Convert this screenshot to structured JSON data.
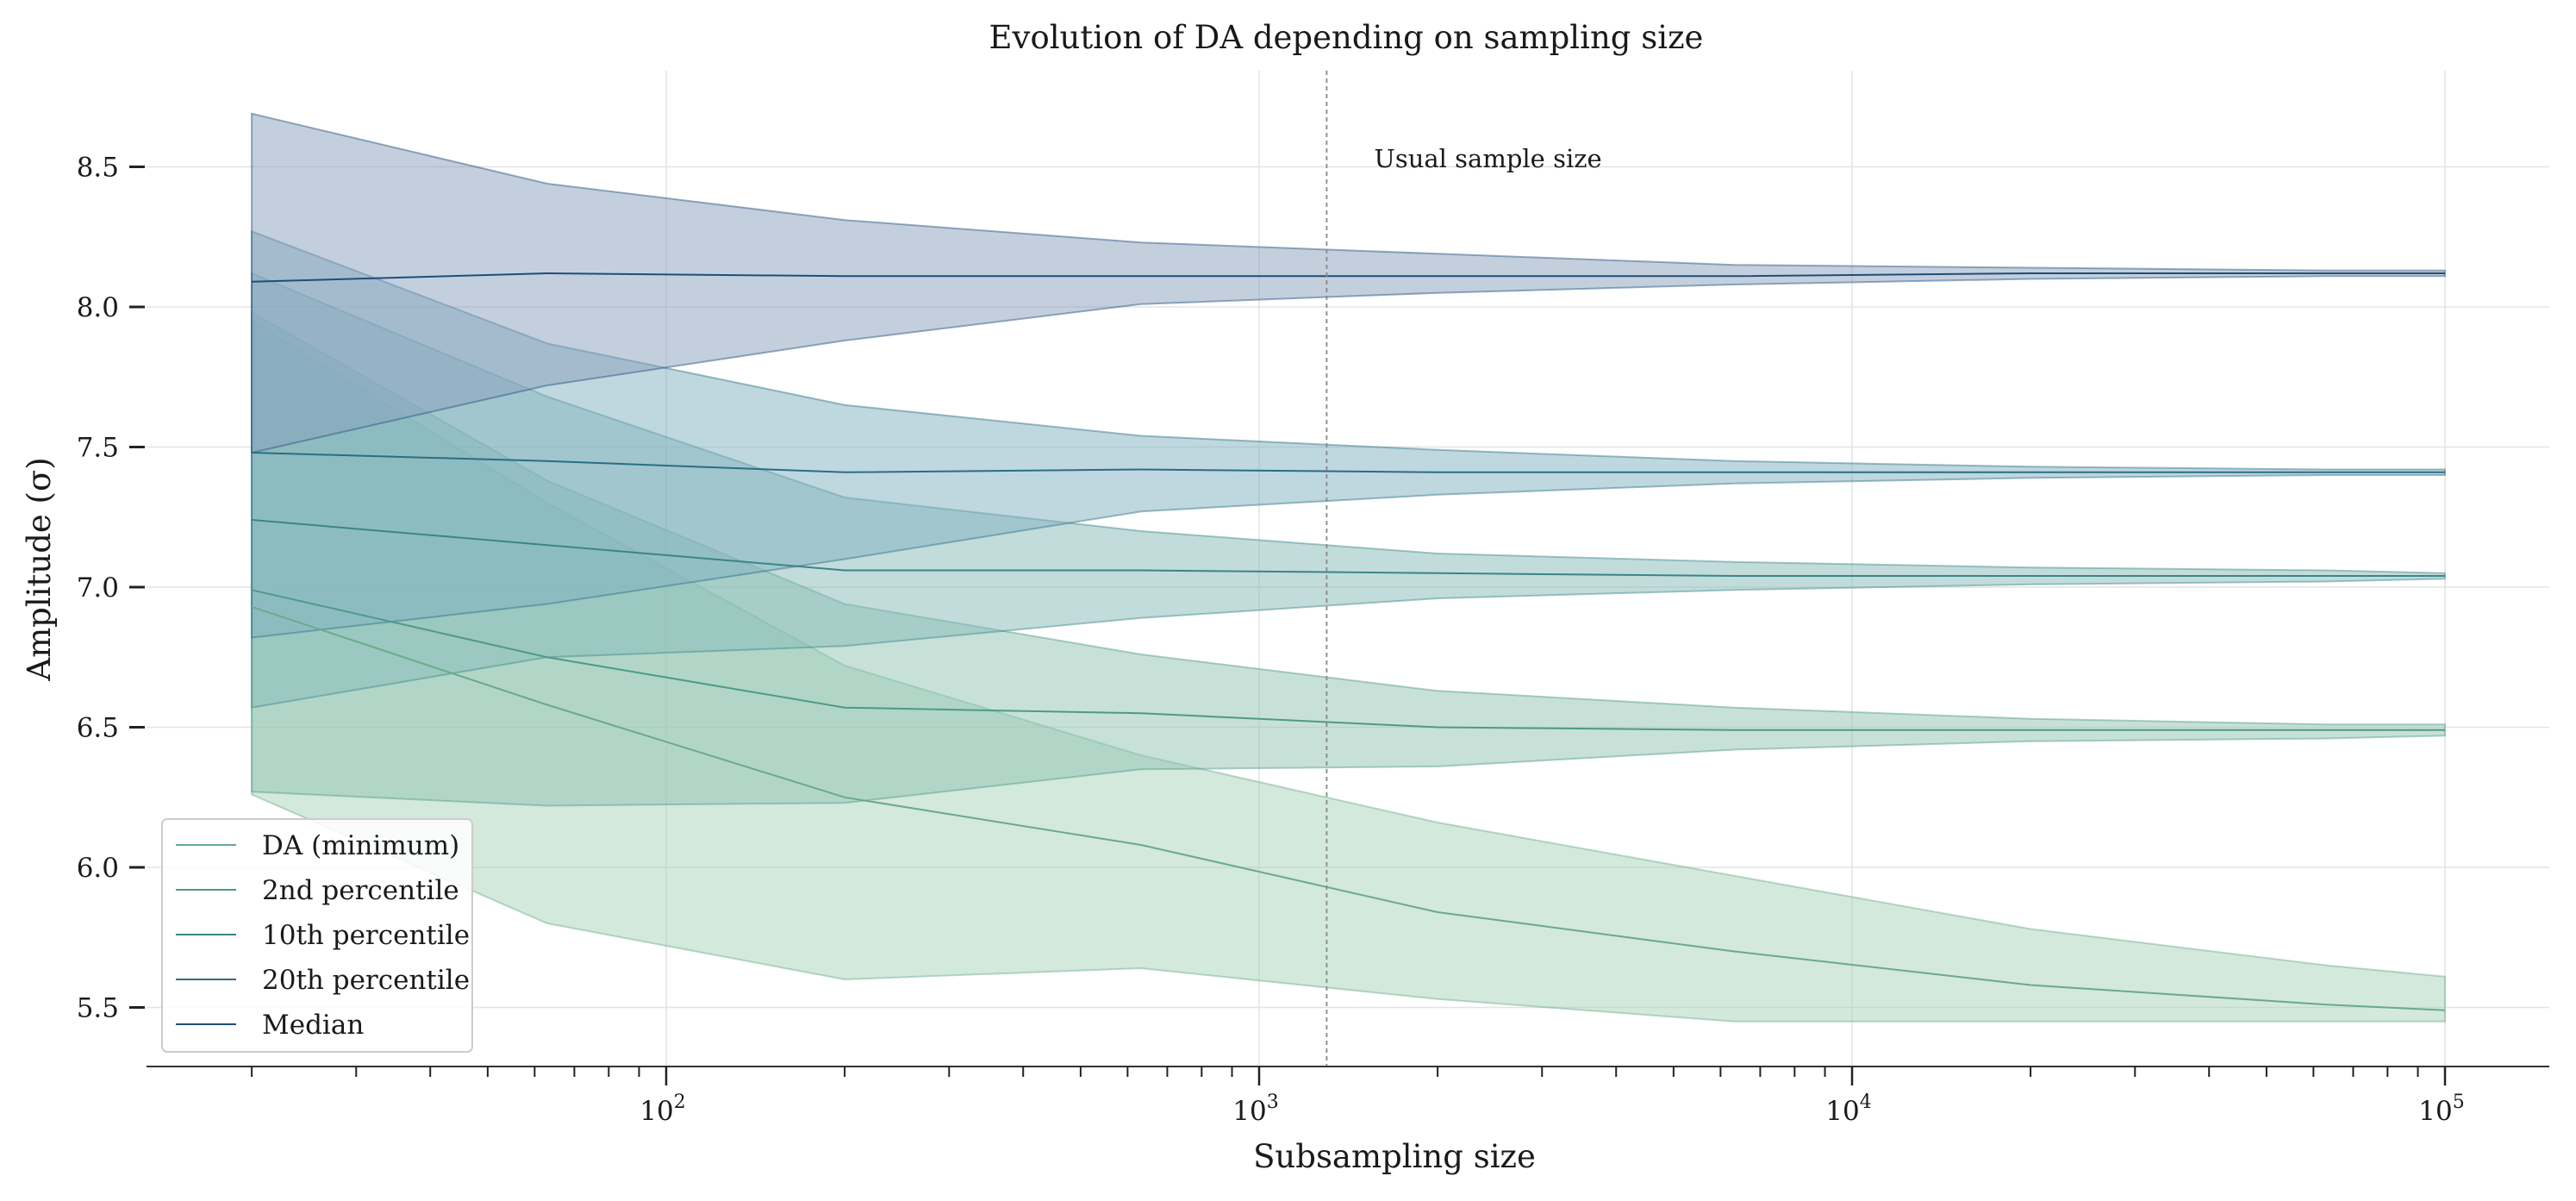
{
  "chart_data": {
    "type": "area",
    "title": "Evolution of DA depending on sampling size",
    "xlabel": "Subsampling size",
    "ylabel": "Amplitude (σ)",
    "x_scale": "log",
    "xlim": [
      14,
      150000
    ],
    "ylim": [
      5.3,
      8.8
    ],
    "grid": true,
    "legend_position": "lower left",
    "x_ticks": [
      {
        "value": 100,
        "base": "10",
        "exp": "2"
      },
      {
        "value": 1000,
        "base": "10",
        "exp": "3"
      },
      {
        "value": 10000,
        "base": "10",
        "exp": "4"
      },
      {
        "value": 100000,
        "base": "10",
        "exp": "5"
      }
    ],
    "y_ticks": [
      "5.5",
      "6.0",
      "6.5",
      "7.0",
      "7.5",
      "8.0",
      "8.5"
    ],
    "x": [
      20,
      63,
      200,
      632,
      2000,
      6325,
      20000,
      63246,
      100000
    ],
    "series": [
      {
        "name": "DA (minimum)",
        "color": "#6aaa8a",
        "fill": "#a8d3b9",
        "median": [
          6.93,
          6.58,
          6.25,
          6.08,
          5.84,
          5.7,
          5.58,
          5.51,
          5.49
        ],
        "lower": [
          6.26,
          5.8,
          5.6,
          5.64,
          5.53,
          5.45,
          5.45,
          5.45,
          5.45
        ],
        "upper": [
          7.95,
          7.3,
          6.72,
          6.4,
          6.16,
          5.97,
          5.78,
          5.65,
          5.61
        ]
      },
      {
        "name": "2nd percentile",
        "color": "#4f9a86",
        "fill": "#8fc4b3",
        "median": [
          6.99,
          6.75,
          6.57,
          6.55,
          6.5,
          6.49,
          6.49,
          6.49,
          6.49
        ],
        "lower": [
          6.27,
          6.22,
          6.23,
          6.35,
          6.36,
          6.42,
          6.45,
          6.46,
          6.47
        ],
        "upper": [
          7.98,
          7.38,
          6.94,
          6.76,
          6.63,
          6.57,
          6.53,
          6.51,
          6.51
        ]
      },
      {
        "name": "10th percentile",
        "color": "#3b8588",
        "fill": "#85bab7",
        "median": [
          7.24,
          7.15,
          7.06,
          7.06,
          7.05,
          7.04,
          7.04,
          7.04,
          7.04
        ],
        "lower": [
          6.57,
          6.75,
          6.79,
          6.89,
          6.96,
          6.99,
          7.01,
          7.02,
          7.03
        ],
        "upper": [
          8.12,
          7.68,
          7.32,
          7.2,
          7.12,
          7.09,
          7.07,
          7.06,
          7.05
        ]
      },
      {
        "name": "20th percentile",
        "color": "#2a6e84",
        "fill": "#80afbf",
        "median": [
          7.48,
          7.45,
          7.41,
          7.42,
          7.41,
          7.41,
          7.41,
          7.41,
          7.41
        ],
        "lower": [
          6.82,
          6.94,
          7.1,
          7.27,
          7.33,
          7.37,
          7.39,
          7.4,
          7.4
        ],
        "upper": [
          8.27,
          7.87,
          7.65,
          7.54,
          7.49,
          7.45,
          7.43,
          7.42,
          7.42
        ]
      },
      {
        "name": "Median",
        "color": "#1f4e79",
        "fill": "#8aa0be",
        "median": [
          8.09,
          8.12,
          8.11,
          8.11,
          8.11,
          8.11,
          8.12,
          8.12,
          8.12
        ],
        "lower": [
          7.48,
          7.72,
          7.88,
          8.01,
          8.05,
          8.08,
          8.1,
          8.11,
          8.11
        ],
        "upper": [
          8.69,
          8.44,
          8.31,
          8.23,
          8.19,
          8.15,
          8.14,
          8.13,
          8.13
        ]
      }
    ],
    "vline": {
      "x": 1300,
      "label": "Usual sample size",
      "color": "#888888"
    }
  }
}
